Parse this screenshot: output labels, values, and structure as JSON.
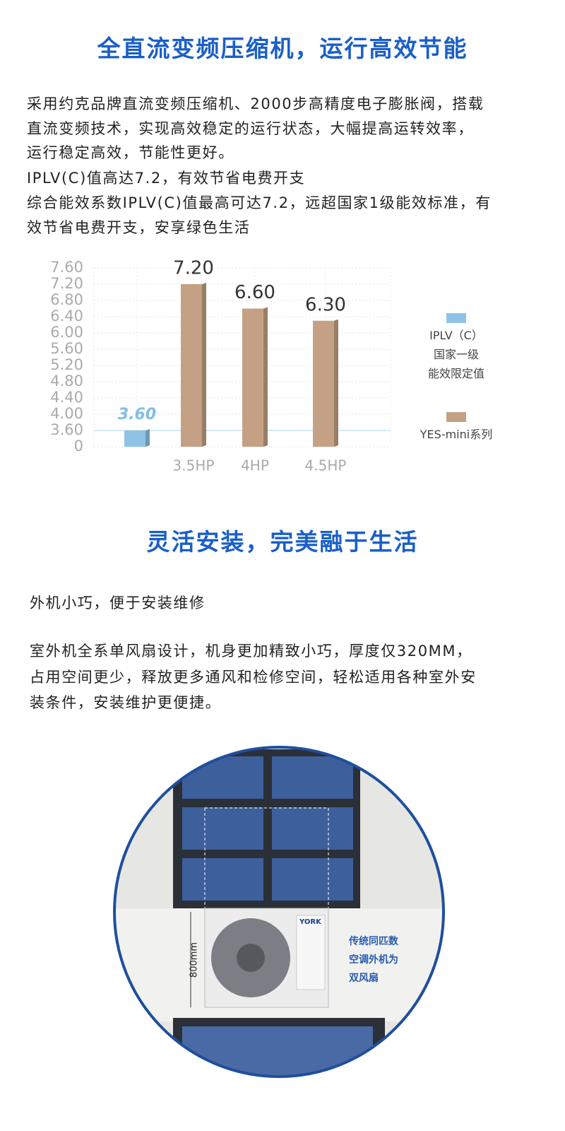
{
  "section1": {
    "title": "全直流变频压缩机，运行高效节能",
    "lines": [
      "采用约克品牌直流变频压缩机、2000步高精度电子膨胀阀，搭载",
      "直流变频技术，实现高效稳定的运行状态，大幅提高运转效率，",
      "运行稳定高效，节能性更好。",
      "IPLV(C)值高达7.2，有效节省电费开支",
      "综合能效系数IPLV(C)值最高可达7.2，远超国家1级能效标准，有",
      "效节省电费开支，安享绿色生活"
    ]
  },
  "chart_data": {
    "type": "bar",
    "categories": [
      null,
      "3.5HP",
      "4HP",
      "4.5HP"
    ],
    "series": [
      {
        "name": "IPLV（C）\n国家一级\n能效限定值",
        "color": "#8ec3e6",
        "values": [
          3.6,
          null,
          null,
          null
        ],
        "value_labels": [
          "3.60",
          null,
          null,
          null
        ]
      },
      {
        "name": "YES-mini系列",
        "color": "#c4a184",
        "values": [
          null,
          7.2,
          6.6,
          6.3
        ],
        "value_labels": [
          null,
          "7.20",
          "6.60",
          "6.30"
        ]
      }
    ],
    "ylim": [
      0,
      7.6
    ],
    "yticks": [
      0,
      {
        "value": 3.6,
        "label": "3.60"
      },
      {
        "value": 4,
        "label": "4.00"
      },
      {
        "value": 4.4,
        "label": "4.40"
      },
      {
        "value": 4.8,
        "label": "4.80"
      },
      {
        "value": 5.2,
        "label": "5.20"
      },
      {
        "value": 5.6,
        "label": "5.60"
      },
      {
        "value": 6,
        "label": "6.00"
      },
      {
        "value": 6.4,
        "label": "6.40"
      },
      {
        "value": 6.8,
        "label": "6.80"
      },
      {
        "value": 7.2,
        "label": "7.20"
      },
      {
        "value": 7.6,
        "label": "7.60"
      }
    ],
    "grid": true,
    "legend": "right"
  },
  "section2": {
    "title": "灵活安装，完美融于生活",
    "subtitle": "外机小巧，便于安装维修",
    "lines": [
      "室外机全系单风扇设计，机身更加精致小巧，厚度仅320MM，",
      "占用空间更少，释放更多通风和检修空间，轻松适用各种室外安",
      "装条件，安装维护更便捷。"
    ]
  },
  "image": {
    "dimension": "800mm",
    "brand": "YORK",
    "note": [
      "传统同匹数",
      "空调外机为",
      "双风扇"
    ]
  }
}
